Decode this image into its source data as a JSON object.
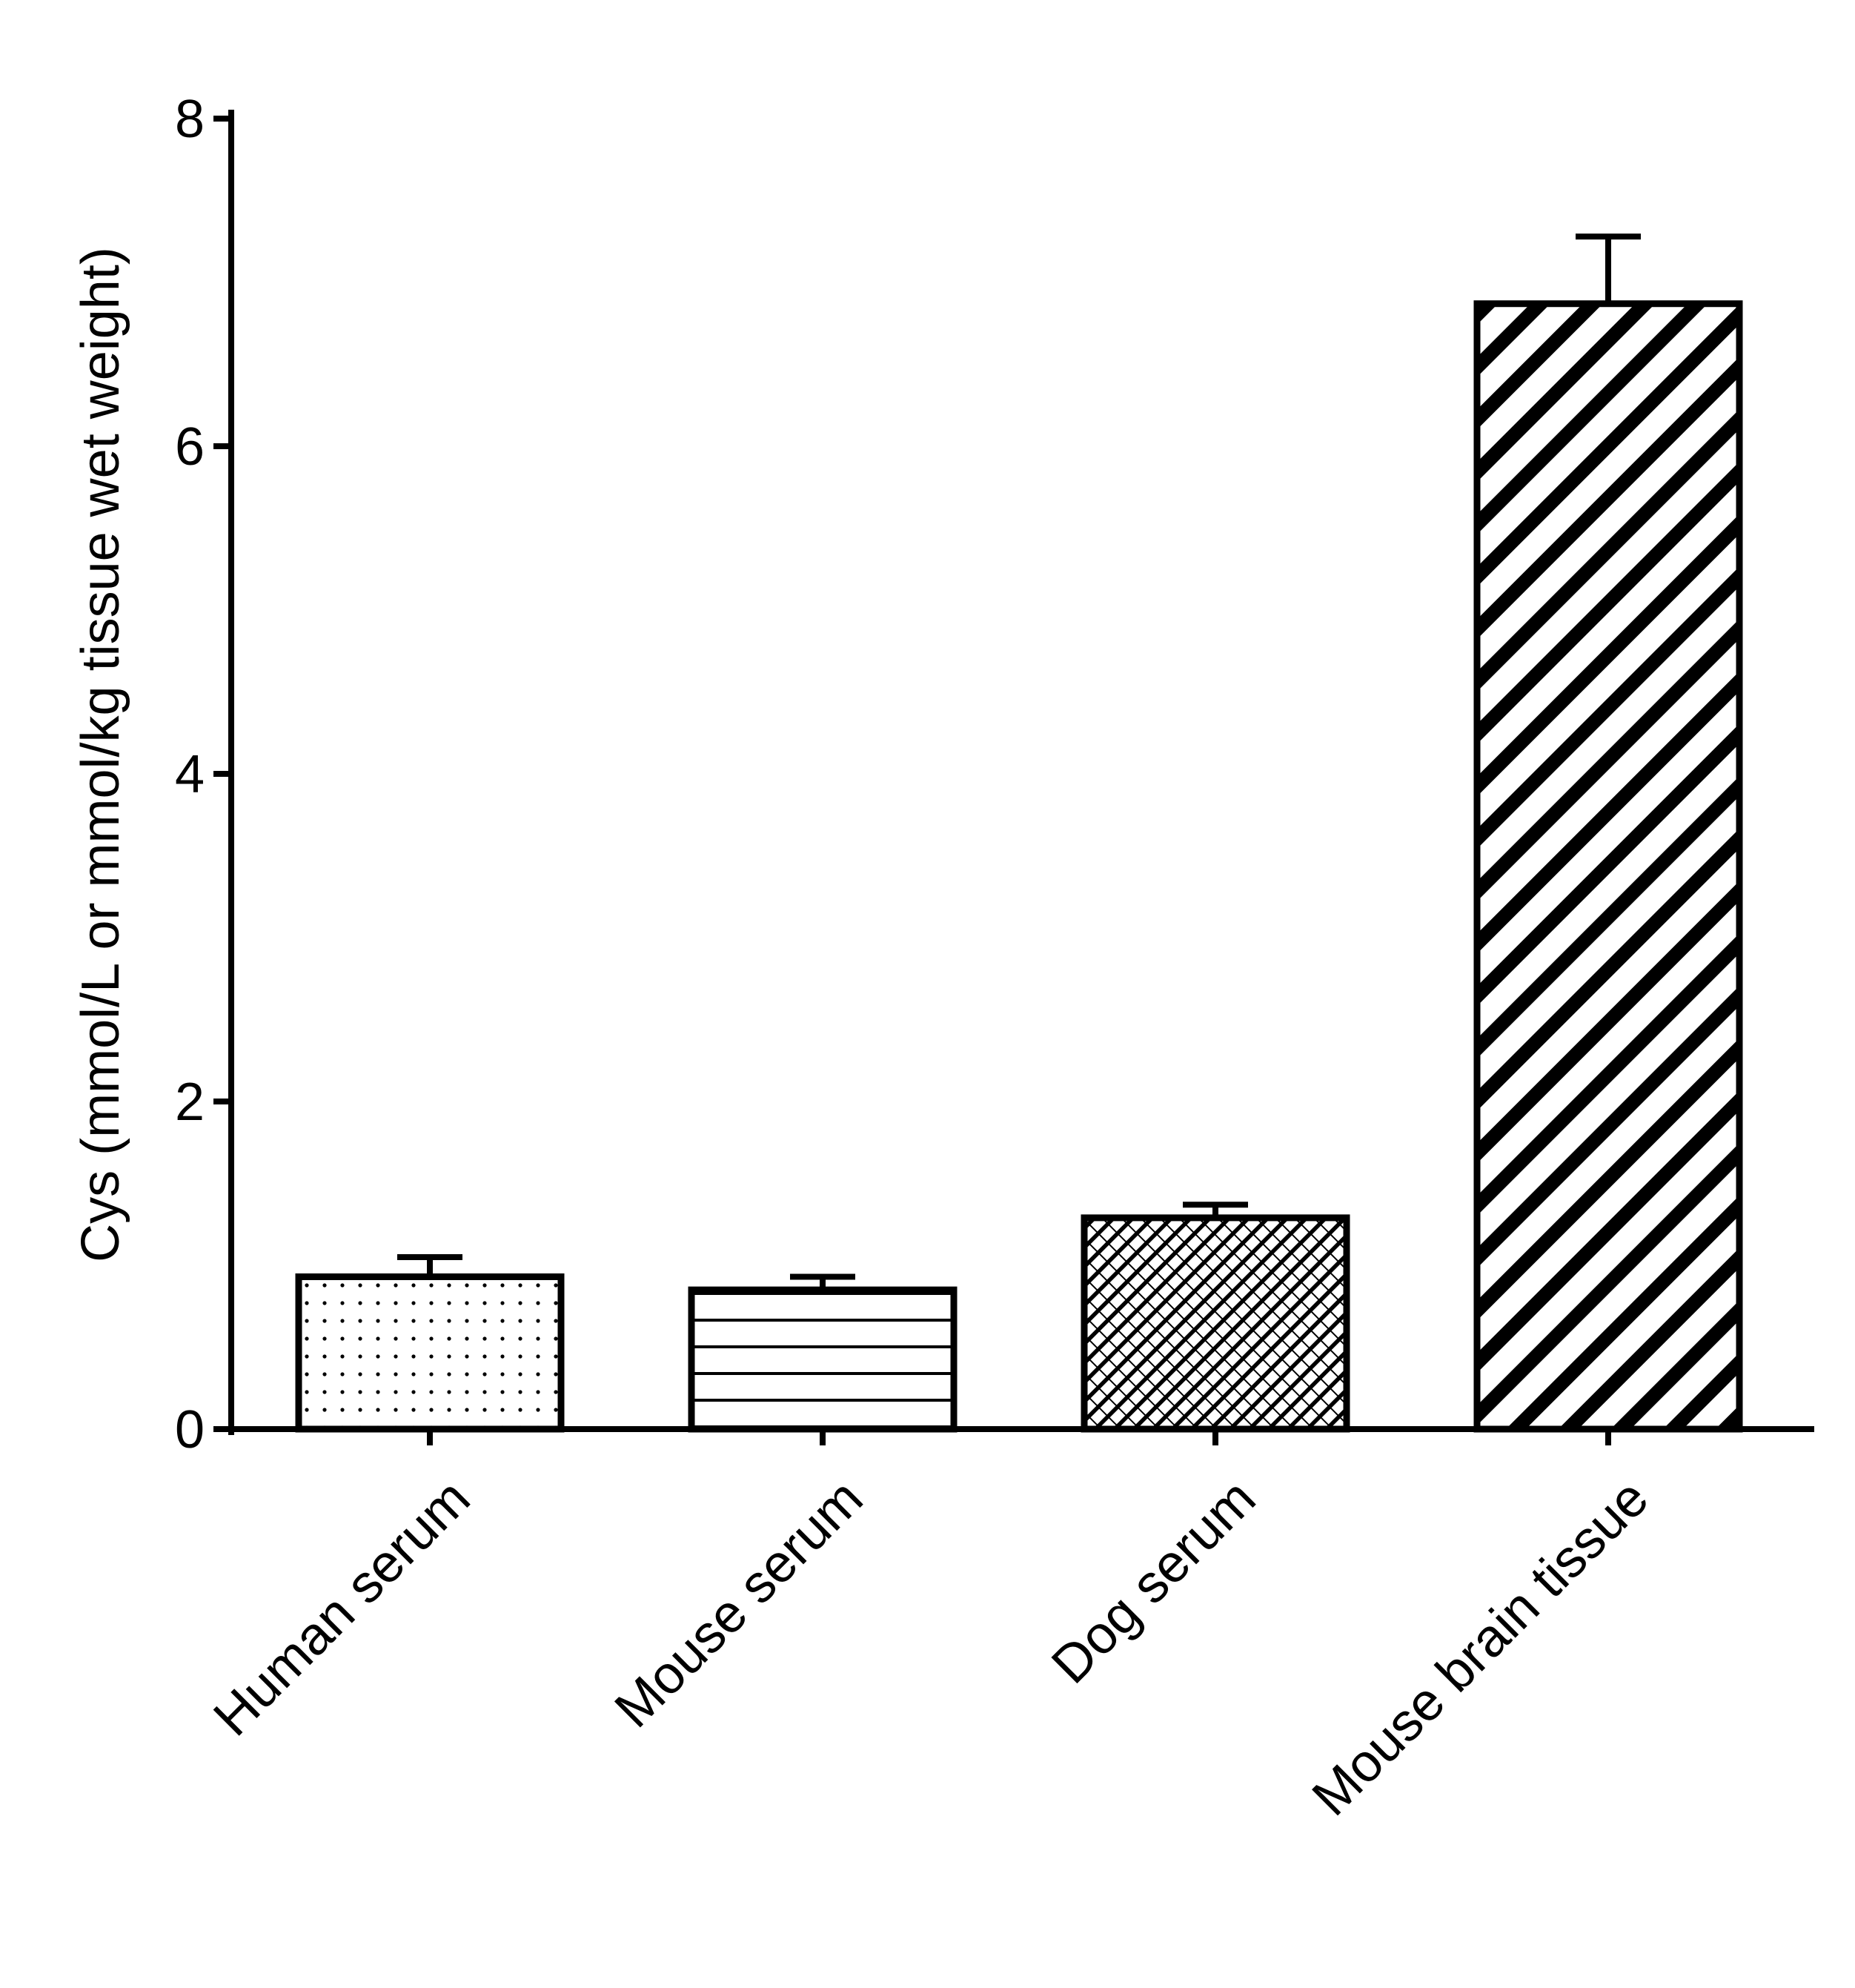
{
  "chart_data": {
    "type": "bar",
    "title": "",
    "xlabel": "",
    "ylabel": "Cys (mmol/L or mmol/kg tissue wet weight)",
    "categories": [
      "Human serum",
      "Mouse serum",
      "Dog serum",
      "Mouse brain tissue"
    ],
    "values": [
      0.93,
      0.85,
      1.29,
      6.87
    ],
    "errors": [
      0.12,
      0.08,
      0.08,
      0.41
    ],
    "patterns": [
      "dots",
      "horizontal-lines",
      "crosshatch",
      "diagonal-stripes"
    ],
    "ylim": [
      0,
      8
    ],
    "yticks": [
      0,
      2,
      4,
      6,
      8
    ],
    "ytick_labels": [
      "0",
      "2",
      "4",
      "6",
      "8"
    ],
    "grid": false,
    "legend": "none",
    "colors": {
      "stroke": "#000000",
      "background": "#ffffff"
    }
  }
}
